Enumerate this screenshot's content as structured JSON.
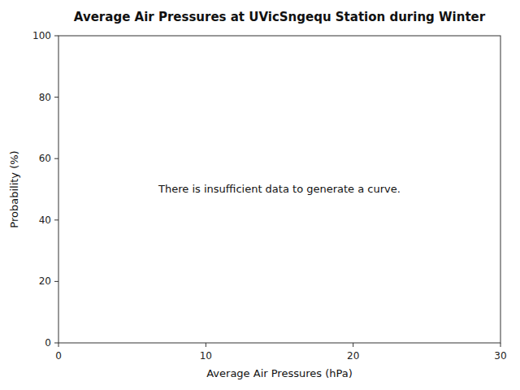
{
  "chart_data": {
    "type": "line",
    "title": "Average Air Pressures at UVicSngequ Station during Winter",
    "xlabel": "Average Air Pressures (hPa)",
    "ylabel": "Probability (%)",
    "xlim": [
      0,
      30
    ],
    "ylim": [
      0,
      100
    ],
    "xticks": [
      0,
      10,
      20,
      30
    ],
    "yticks": [
      0,
      20,
      40,
      60,
      80,
      100
    ],
    "annotation": "There is insufficient data to generate a curve.",
    "grid": false
  }
}
